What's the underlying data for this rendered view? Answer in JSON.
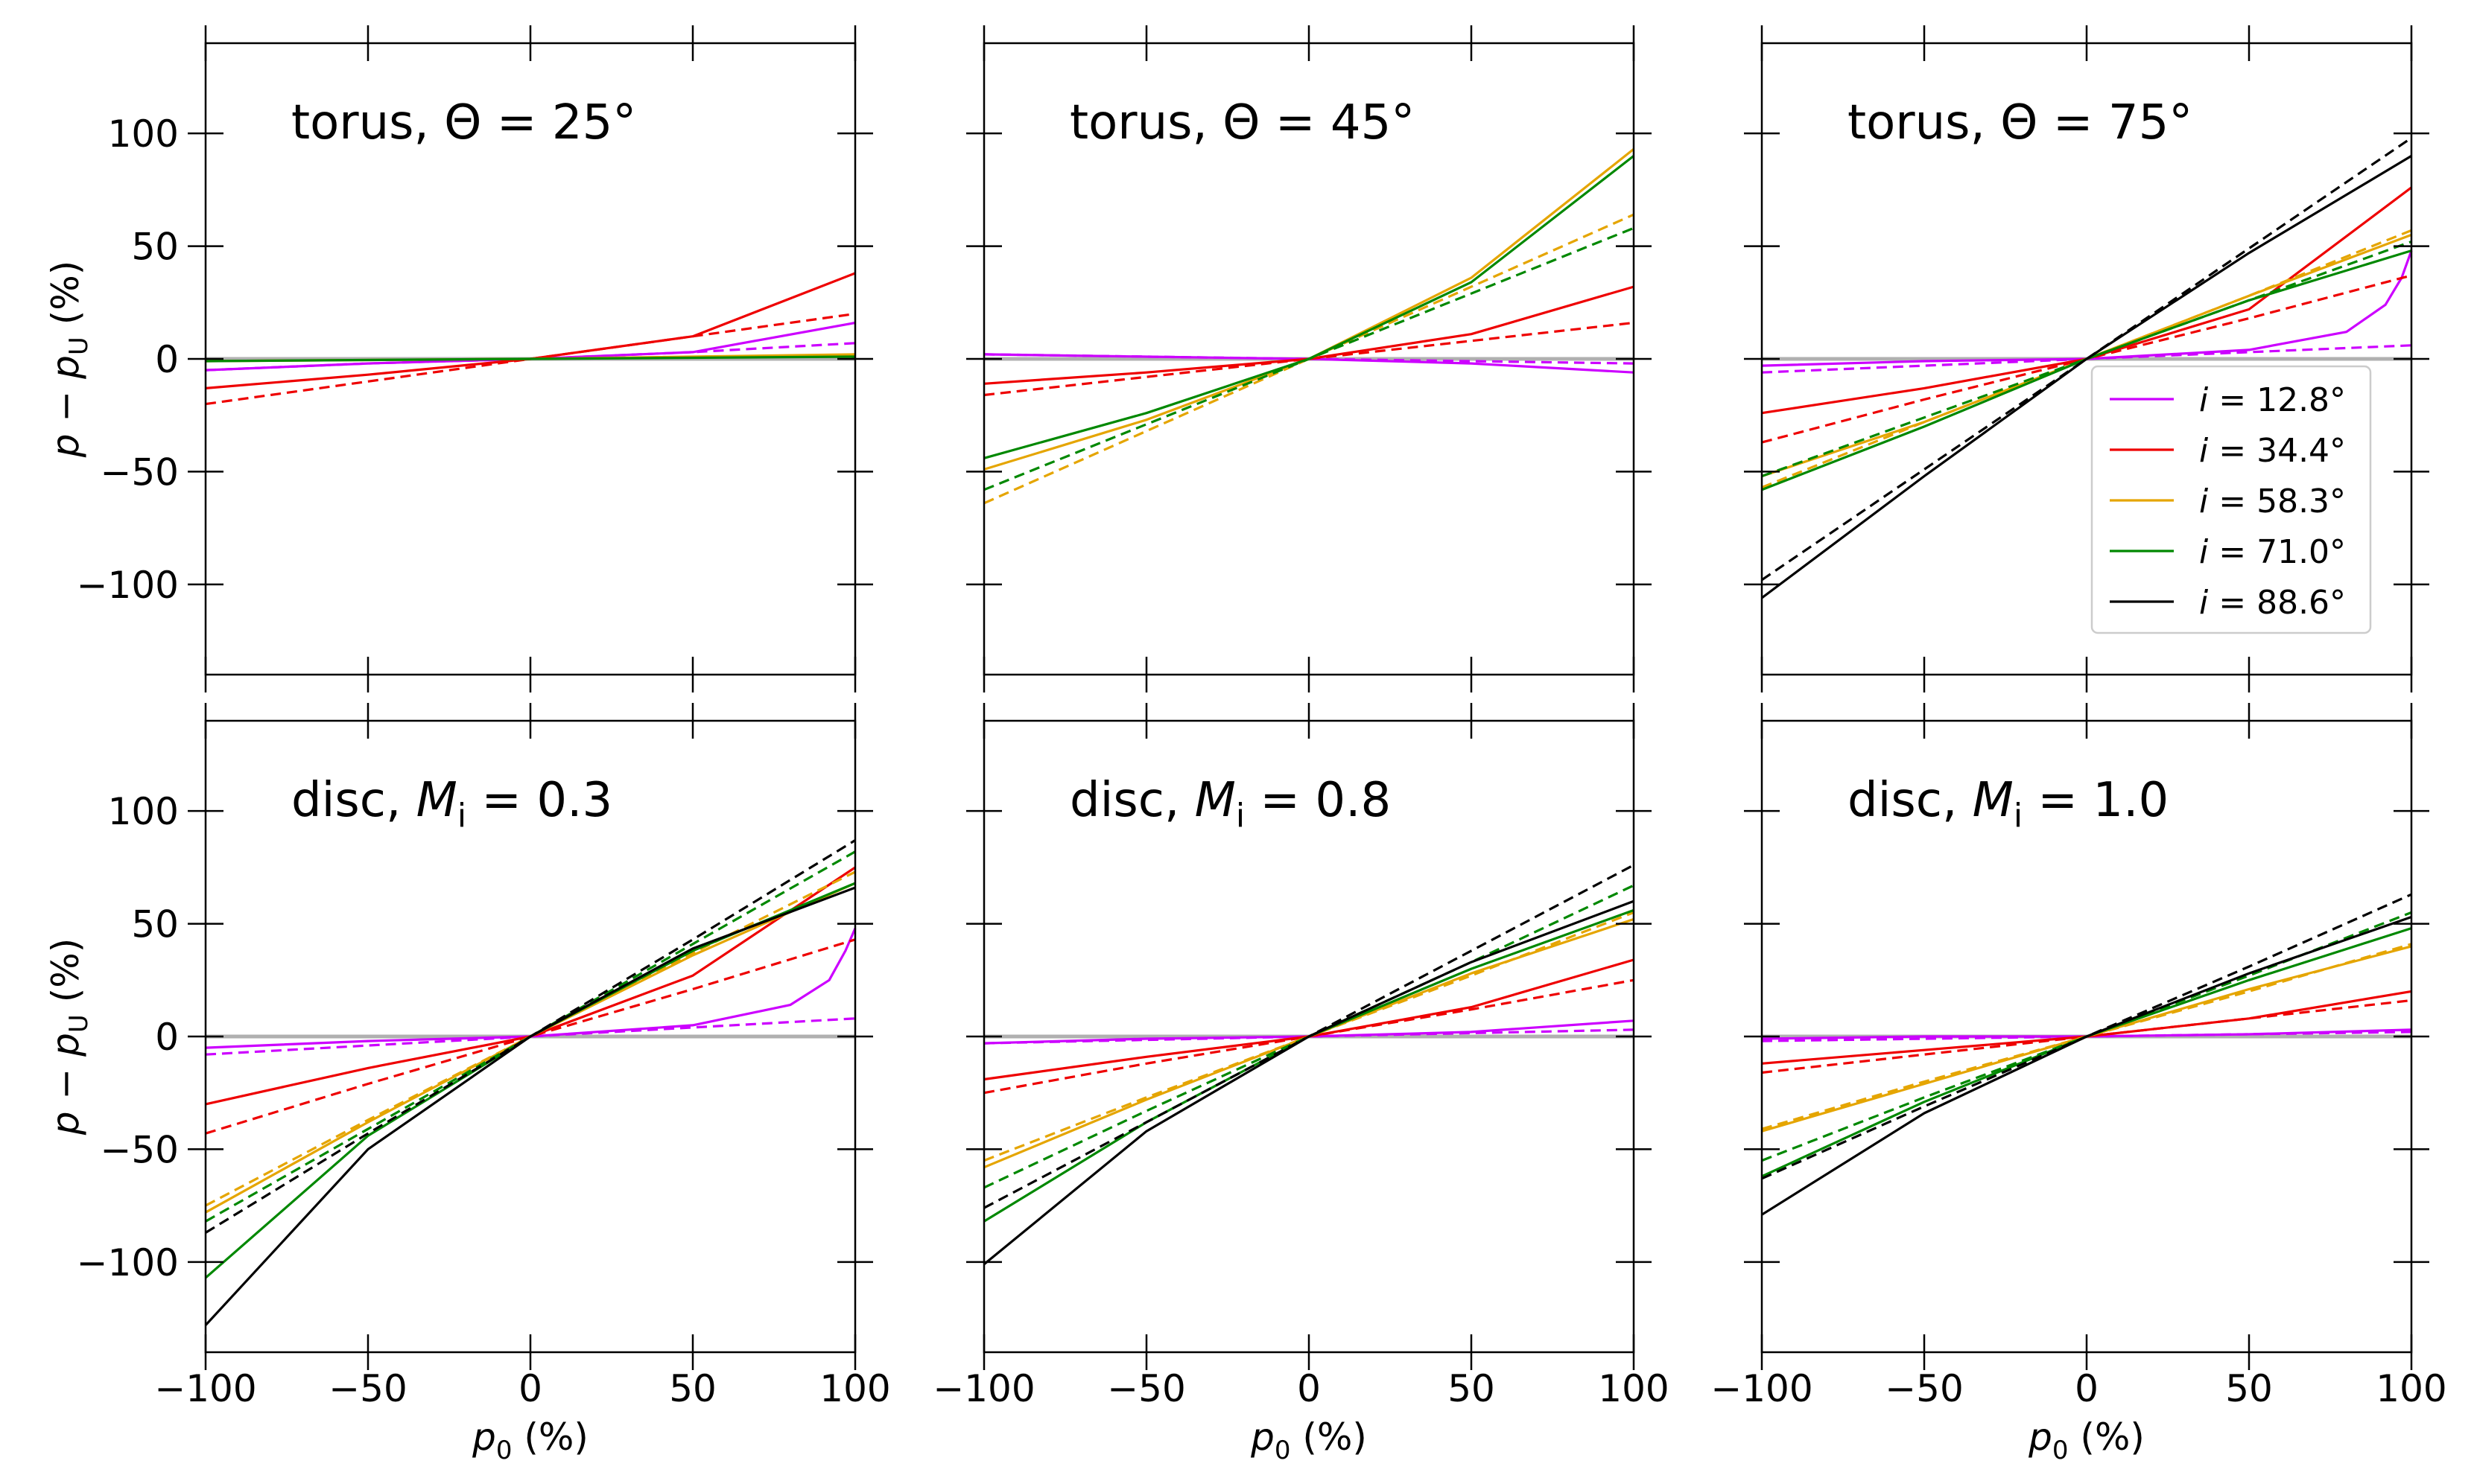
{
  "axis_labels": {
    "ylabel_prefix": "p − p",
    "ylabel_sub": "U",
    "ylabel_suffix": " (%)",
    "xlabel_prefix": "p",
    "xlabel_sub": "0",
    "xlabel_suffix": " (%)"
  },
  "colors": {
    "magenta": "#cc00ff",
    "red": "#ee0000",
    "goldenrod": "#e5a500",
    "green": "#008800",
    "black": "#000000",
    "zero_line": "#b0b0b0"
  },
  "legend": {
    "placement": "lower-right of top-right panel",
    "entries": [
      {
        "symbol": "i",
        "value": " = 12.8°",
        "color": "#cc00ff"
      },
      {
        "symbol": "i",
        "value": " = 34.4°",
        "color": "#ee0000"
      },
      {
        "symbol": "i",
        "value": " = 58.3°",
        "color": "#e5a500"
      },
      {
        "symbol": "i",
        "value": " = 71.0°",
        "color": "#008800"
      },
      {
        "symbol": "i",
        "value": " = 88.6°",
        "color": "#000000"
      }
    ]
  },
  "chart_data": [
    {
      "type": "line",
      "title": {
        "main": "torus, Θ = 25°",
        "italic_part": "",
        "sub": "",
        "after": ""
      },
      "xlim": [
        -100,
        100
      ],
      "ylim": [
        -140,
        140
      ],
      "xticks": [
        -100,
        -50,
        0,
        50,
        100
      ],
      "yticks": [
        -100,
        -50,
        0,
        50,
        100
      ],
      "series": [
        {
          "color": "#cc00ff",
          "dash": false,
          "x": [
            -100,
            -50,
            0,
            50,
            100
          ],
          "y": [
            -5,
            -2,
            0,
            3,
            16
          ]
        },
        {
          "color": "#cc00ff",
          "dash": true,
          "x": [
            -100,
            -50,
            0,
            50,
            100
          ],
          "y": [
            -5,
            -2,
            0,
            3,
            7
          ]
        },
        {
          "color": "#ee0000",
          "dash": false,
          "x": [
            -100,
            -50,
            0,
            50,
            100
          ],
          "y": [
            -13,
            -7,
            0,
            10,
            38
          ]
        },
        {
          "color": "#ee0000",
          "dash": true,
          "x": [
            -100,
            -50,
            0,
            50,
            100
          ],
          "y": [
            -20,
            -10,
            0,
            10,
            20
          ]
        },
        {
          "color": "#e5a500",
          "dash": false,
          "x": [
            -100,
            0,
            100
          ],
          "y": [
            -1,
            0,
            2
          ]
        },
        {
          "color": "#008800",
          "dash": false,
          "x": [
            -100,
            0,
            100
          ],
          "y": [
            -1,
            0,
            1
          ]
        }
      ]
    },
    {
      "type": "line",
      "title": {
        "main": "torus, Θ = 45°",
        "italic_part": "",
        "sub": "",
        "after": ""
      },
      "xlim": [
        -100,
        100
      ],
      "ylim": [
        -140,
        140
      ],
      "xticks": [
        -100,
        -50,
        0,
        50,
        100
      ],
      "yticks": [
        -100,
        -50,
        0,
        50,
        100
      ],
      "series": [
        {
          "color": "#cc00ff",
          "dash": false,
          "x": [
            -100,
            -50,
            0,
            50,
            100
          ],
          "y": [
            2,
            1,
            0,
            -2,
            -6
          ]
        },
        {
          "color": "#cc00ff",
          "dash": true,
          "x": [
            -100,
            0,
            100
          ],
          "y": [
            2,
            0,
            -2
          ]
        },
        {
          "color": "#ee0000",
          "dash": false,
          "x": [
            -100,
            -50,
            0,
            50,
            100
          ],
          "y": [
            -11,
            -6,
            0,
            11,
            32
          ]
        },
        {
          "color": "#ee0000",
          "dash": true,
          "x": [
            -100,
            -50,
            0,
            50,
            100
          ],
          "y": [
            -16,
            -8,
            0,
            8,
            16
          ]
        },
        {
          "color": "#e5a500",
          "dash": false,
          "x": [
            -100,
            -50,
            0,
            50,
            100
          ],
          "y": [
            -49,
            -27,
            0,
            36,
            93
          ]
        },
        {
          "color": "#e5a500",
          "dash": true,
          "x": [
            -100,
            -50,
            0,
            50,
            100
          ],
          "y": [
            -64,
            -32,
            0,
            32,
            64
          ]
        },
        {
          "color": "#008800",
          "dash": false,
          "x": [
            -100,
            -50,
            0,
            50,
            100
          ],
          "y": [
            -44,
            -24,
            0,
            34,
            90
          ]
        },
        {
          "color": "#008800",
          "dash": true,
          "x": [
            -100,
            -50,
            0,
            50,
            100
          ],
          "y": [
            -58,
            -29,
            0,
            29,
            58
          ]
        }
      ]
    },
    {
      "type": "line",
      "title": {
        "main": "torus, Θ = 75°",
        "italic_part": "",
        "sub": "",
        "after": ""
      },
      "xlim": [
        -100,
        100
      ],
      "ylim": [
        -140,
        140
      ],
      "xticks": [
        -100,
        -50,
        0,
        50,
        100
      ],
      "yticks": [
        -100,
        -50,
        0,
        50,
        100
      ],
      "series": [
        {
          "color": "#cc00ff",
          "dash": false,
          "x": [
            -100,
            -50,
            0,
            50,
            80,
            92,
            97,
            100
          ],
          "y": [
            -3,
            -1,
            0,
            4,
            12,
            24,
            36,
            48
          ]
        },
        {
          "color": "#cc00ff",
          "dash": true,
          "x": [
            -100,
            -50,
            0,
            50,
            100
          ],
          "y": [
            -6,
            -3,
            0,
            3,
            6
          ]
        },
        {
          "color": "#ee0000",
          "dash": false,
          "x": [
            -100,
            -50,
            0,
            50,
            100
          ],
          "y": [
            -24,
            -13,
            0,
            22,
            76
          ]
        },
        {
          "color": "#ee0000",
          "dash": true,
          "x": [
            -100,
            -50,
            0,
            50,
            100
          ],
          "y": [
            -37,
            -18,
            0,
            18,
            37
          ]
        },
        {
          "color": "#e5a500",
          "dash": false,
          "x": [
            -100,
            -50,
            0,
            50,
            100
          ],
          "y": [
            -52,
            -28,
            0,
            28,
            55
          ]
        },
        {
          "color": "#e5a500",
          "dash": true,
          "x": [
            -100,
            -50,
            0,
            50,
            100
          ],
          "y": [
            -57,
            -28,
            0,
            28,
            57
          ]
        },
        {
          "color": "#008800",
          "dash": false,
          "x": [
            -100,
            -50,
            0,
            50,
            100
          ],
          "y": [
            -58,
            -30,
            0,
            26,
            48
          ]
        },
        {
          "color": "#008800",
          "dash": true,
          "x": [
            -100,
            -50,
            0,
            50,
            100
          ],
          "y": [
            -52,
            -26,
            0,
            26,
            52
          ]
        },
        {
          "color": "#000000",
          "dash": false,
          "x": [
            -100,
            -50,
            0,
            50,
            100
          ],
          "y": [
            -106,
            -52,
            0,
            47,
            90
          ]
        },
        {
          "color": "#000000",
          "dash": true,
          "x": [
            -100,
            -50,
            0,
            50,
            100
          ],
          "y": [
            -98,
            -49,
            0,
            49,
            98
          ]
        }
      ]
    },
    {
      "type": "line",
      "title": {
        "main": "disc, ",
        "italic_part": "M",
        "sub": "i",
        "after": " = 0.3"
      },
      "xlim": [
        -100,
        100
      ],
      "ylim": [
        -140,
        140
      ],
      "xticks": [
        -100,
        -50,
        0,
        50,
        100
      ],
      "yticks": [
        -100,
        -50,
        0,
        50,
        100
      ],
      "series": [
        {
          "color": "#cc00ff",
          "dash": false,
          "x": [
            -100,
            -50,
            0,
            50,
            80,
            92,
            97,
            100
          ],
          "y": [
            -5,
            -2,
            0,
            5,
            14,
            25,
            38,
            48
          ]
        },
        {
          "color": "#cc00ff",
          "dash": true,
          "x": [
            -100,
            -50,
            0,
            50,
            100
          ],
          "y": [
            -8,
            -4,
            0,
            4,
            8
          ]
        },
        {
          "color": "#ee0000",
          "dash": false,
          "x": [
            -100,
            -50,
            0,
            50,
            100
          ],
          "y": [
            -30,
            -14,
            0,
            27,
            75
          ]
        },
        {
          "color": "#ee0000",
          "dash": true,
          "x": [
            -100,
            -50,
            0,
            50,
            100
          ],
          "y": [
            -43,
            -21,
            0,
            21,
            43
          ]
        },
        {
          "color": "#e5a500",
          "dash": false,
          "x": [
            -100,
            -50,
            0,
            50,
            100
          ],
          "y": [
            -78,
            -38,
            0,
            36,
            68
          ]
        },
        {
          "color": "#e5a500",
          "dash": true,
          "x": [
            -100,
            -50,
            0,
            50,
            100
          ],
          "y": [
            -75,
            -37,
            0,
            37,
            73
          ]
        },
        {
          "color": "#008800",
          "dash": false,
          "x": [
            -100,
            -50,
            0,
            50,
            100
          ],
          "y": [
            -107,
            -44,
            0,
            38,
            68
          ]
        },
        {
          "color": "#008800",
          "dash": true,
          "x": [
            -100,
            -50,
            0,
            50,
            100
          ],
          "y": [
            -82,
            -41,
            0,
            41,
            82
          ]
        },
        {
          "color": "#000000",
          "dash": false,
          "x": [
            -100,
            -50,
            0,
            50,
            100
          ],
          "y": [
            -128,
            -50,
            0,
            39,
            66
          ]
        },
        {
          "color": "#000000",
          "dash": true,
          "x": [
            -100,
            -50,
            0,
            50,
            100
          ],
          "y": [
            -87,
            -43,
            0,
            43,
            87
          ]
        }
      ]
    },
    {
      "type": "line",
      "title": {
        "main": "disc, ",
        "italic_part": "M",
        "sub": "i",
        "after": " = 0.8"
      },
      "xlim": [
        -100,
        100
      ],
      "ylim": [
        -140,
        140
      ],
      "xticks": [
        -100,
        -50,
        0,
        50,
        100
      ],
      "yticks": [
        -100,
        -50,
        0,
        50,
        100
      ],
      "series": [
        {
          "color": "#cc00ff",
          "dash": false,
          "x": [
            -100,
            -50,
            0,
            50,
            100
          ],
          "y": [
            -3,
            -1,
            0,
            2,
            7
          ]
        },
        {
          "color": "#cc00ff",
          "dash": true,
          "x": [
            -100,
            0,
            100
          ],
          "y": [
            -3,
            0,
            3
          ]
        },
        {
          "color": "#ee0000",
          "dash": false,
          "x": [
            -100,
            -50,
            0,
            50,
            100
          ],
          "y": [
            -19,
            -9,
            0,
            13,
            34
          ]
        },
        {
          "color": "#ee0000",
          "dash": true,
          "x": [
            -100,
            -50,
            0,
            50,
            100
          ],
          "y": [
            -25,
            -12,
            0,
            12,
            25
          ]
        },
        {
          "color": "#e5a500",
          "dash": false,
          "x": [
            -100,
            -50,
            0,
            50,
            100
          ],
          "y": [
            -58,
            -28,
            0,
            28,
            52
          ]
        },
        {
          "color": "#e5a500",
          "dash": true,
          "x": [
            -100,
            -50,
            0,
            50,
            100
          ],
          "y": [
            -55,
            -27,
            0,
            27,
            55
          ]
        },
        {
          "color": "#008800",
          "dash": false,
          "x": [
            -100,
            -50,
            0,
            50,
            100
          ],
          "y": [
            -82,
            -38,
            0,
            30,
            56
          ]
        },
        {
          "color": "#008800",
          "dash": true,
          "x": [
            -100,
            -50,
            0,
            50,
            100
          ],
          "y": [
            -67,
            -33,
            0,
            33,
            67
          ]
        },
        {
          "color": "#000000",
          "dash": false,
          "x": [
            -100,
            -50,
            0,
            50,
            100
          ],
          "y": [
            -101,
            -42,
            0,
            33,
            60
          ]
        },
        {
          "color": "#000000",
          "dash": true,
          "x": [
            -100,
            -50,
            0,
            50,
            100
          ],
          "y": [
            -76,
            -38,
            0,
            38,
            76
          ]
        }
      ]
    },
    {
      "type": "line",
      "title": {
        "main": "disc, ",
        "italic_part": "M",
        "sub": "i",
        "after": " = 1.0"
      },
      "xlim": [
        -100,
        100
      ],
      "ylim": [
        -140,
        140
      ],
      "xticks": [
        -100,
        -50,
        0,
        50,
        100
      ],
      "yticks": [
        -100,
        -50,
        0,
        50,
        100
      ],
      "series": [
        {
          "color": "#cc00ff",
          "dash": false,
          "x": [
            -100,
            -50,
            0,
            50,
            100
          ],
          "y": [
            -1,
            0,
            0,
            1,
            3
          ]
        },
        {
          "color": "#cc00ff",
          "dash": true,
          "x": [
            -100,
            0,
            100
          ],
          "y": [
            -2,
            0,
            2
          ]
        },
        {
          "color": "#ee0000",
          "dash": false,
          "x": [
            -100,
            -50,
            0,
            50,
            100
          ],
          "y": [
            -12,
            -6,
            0,
            8,
            20
          ]
        },
        {
          "color": "#ee0000",
          "dash": true,
          "x": [
            -100,
            -50,
            0,
            50,
            100
          ],
          "y": [
            -16,
            -8,
            0,
            8,
            16
          ]
        },
        {
          "color": "#e5a500",
          "dash": false,
          "x": [
            -100,
            -50,
            0,
            50,
            100
          ],
          "y": [
            -42,
            -21,
            0,
            21,
            40
          ]
        },
        {
          "color": "#e5a500",
          "dash": true,
          "x": [
            -100,
            -50,
            0,
            50,
            100
          ],
          "y": [
            -41,
            -20,
            0,
            20,
            41
          ]
        },
        {
          "color": "#008800",
          "dash": false,
          "x": [
            -100,
            -50,
            0,
            50,
            100
          ],
          "y": [
            -62,
            -29,
            0,
            25,
            48
          ]
        },
        {
          "color": "#008800",
          "dash": true,
          "x": [
            -100,
            -50,
            0,
            50,
            100
          ],
          "y": [
            -55,
            -27,
            0,
            27,
            55
          ]
        },
        {
          "color": "#000000",
          "dash": false,
          "x": [
            -100,
            -50,
            0,
            50,
            100
          ],
          "y": [
            -79,
            -34,
            0,
            28,
            53
          ]
        },
        {
          "color": "#000000",
          "dash": true,
          "x": [
            -100,
            -50,
            0,
            50,
            100
          ],
          "y": [
            -63,
            -31,
            0,
            31,
            63
          ]
        }
      ]
    }
  ]
}
